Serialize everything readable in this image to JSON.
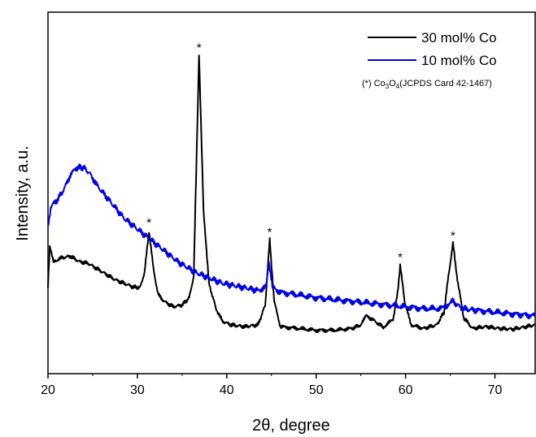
{
  "chart_data": {
    "type": "line",
    "xlabel": "2θ, degree",
    "ylabel": "Intensity, a.u.",
    "xlim": [
      20,
      74.5
    ],
    "ylim": [
      0,
      100
    ],
    "x_ticks": [
      20,
      30,
      40,
      50,
      60,
      70
    ],
    "x_tick_labels": [
      "20",
      "30",
      "40",
      "50",
      "60",
      "70"
    ],
    "y_tick_labels_shown": false,
    "grid": false,
    "legend_position": "top-right",
    "note": {
      "text_before": "(*) Co",
      "sub1": "3",
      "mid": "O",
      "sub2": "4",
      "text_after": "(JCPDS Card 42-1467)"
    },
    "peak_marker": "*",
    "peak_markers_x": [
      31.3,
      36.9,
      44.8,
      59.4,
      65.3
    ],
    "series": [
      {
        "name": "30 mol% Co",
        "color": "#000000",
        "points": [
          [
            20,
            24
          ],
          [
            20.2,
            35
          ],
          [
            20.6,
            31
          ],
          [
            21.5,
            32
          ],
          [
            22.5,
            32.5
          ],
          [
            23.5,
            31
          ],
          [
            24.5,
            30.5
          ],
          [
            25.5,
            29
          ],
          [
            26.5,
            27.5
          ],
          [
            27.5,
            26
          ],
          [
            28.5,
            25
          ],
          [
            29.5,
            24
          ],
          [
            30.3,
            23.8
          ],
          [
            30.8,
            28
          ],
          [
            31.3,
            39.5
          ],
          [
            31.8,
            29
          ],
          [
            32.3,
            22
          ],
          [
            33,
            20
          ],
          [
            34,
            18.5
          ],
          [
            35,
            19
          ],
          [
            35.8,
            21
          ],
          [
            36.3,
            27
          ],
          [
            36.9,
            88
          ],
          [
            37.4,
            45
          ],
          [
            38,
            25
          ],
          [
            38.8,
            18
          ],
          [
            39.5,
            14.5
          ],
          [
            40.5,
            13.5
          ],
          [
            42,
            13
          ],
          [
            43.5,
            13.5
          ],
          [
            44.3,
            19
          ],
          [
            44.8,
            37
          ],
          [
            45.3,
            20
          ],
          [
            46,
            13
          ],
          [
            48,
            12.5
          ],
          [
            50,
            12
          ],
          [
            52,
            12
          ],
          [
            54,
            12.5
          ],
          [
            55,
            13.5
          ],
          [
            55.6,
            16
          ],
          [
            56.3,
            15
          ],
          [
            57.5,
            12.8
          ],
          [
            58.6,
            15
          ],
          [
            59.1,
            22
          ],
          [
            59.4,
            30
          ],
          [
            59.9,
            20
          ],
          [
            60.6,
            13.5
          ],
          [
            62,
            12.5
          ],
          [
            63.5,
            13.5
          ],
          [
            64.3,
            17
          ],
          [
            64.8,
            27
          ],
          [
            65.3,
            36
          ],
          [
            65.8,
            26
          ],
          [
            66.5,
            15.5
          ],
          [
            67.5,
            12.5
          ],
          [
            69,
            13
          ],
          [
            70.5,
            12.5
          ],
          [
            72,
            12.3
          ],
          [
            73.5,
            13
          ],
          [
            74.5,
            13.5
          ]
        ]
      },
      {
        "name": "10 mol% Co",
        "color": "#0000e6",
        "points": [
          [
            20,
            40
          ],
          [
            20.3,
            46
          ],
          [
            21,
            48
          ],
          [
            21.8,
            51
          ],
          [
            22.5,
            55
          ],
          [
            23.2,
            57
          ],
          [
            24,
            57
          ],
          [
            24.8,
            55
          ],
          [
            25.5,
            52
          ],
          [
            26.5,
            49
          ],
          [
            27.5,
            46
          ],
          [
            28.5,
            43
          ],
          [
            29.5,
            41
          ],
          [
            30.5,
            39
          ],
          [
            31.5,
            37
          ],
          [
            32.5,
            35
          ],
          [
            33.5,
            33
          ],
          [
            34.5,
            31
          ],
          [
            35.5,
            29.5
          ],
          [
            36.5,
            28
          ],
          [
            37.5,
            27
          ],
          [
            38.5,
            26
          ],
          [
            39.5,
            25
          ],
          [
            40.5,
            24.5
          ],
          [
            41.5,
            24
          ],
          [
            42.5,
            23.5
          ],
          [
            43.5,
            23
          ],
          [
            44.4,
            24
          ],
          [
            44.7,
            31
          ],
          [
            45.1,
            24
          ],
          [
            46,
            22.5
          ],
          [
            48,
            21.8
          ],
          [
            50,
            21
          ],
          [
            52,
            20.5
          ],
          [
            54,
            20
          ],
          [
            56,
            19.5
          ],
          [
            58,
            19
          ],
          [
            60,
            18.5
          ],
          [
            62,
            18
          ],
          [
            64,
            18
          ],
          [
            65.3,
            20
          ],
          [
            66.3,
            18
          ],
          [
            68,
            17.5
          ],
          [
            70,
            17
          ],
          [
            72,
            16.5
          ],
          [
            74.5,
            16
          ]
        ]
      }
    ]
  }
}
